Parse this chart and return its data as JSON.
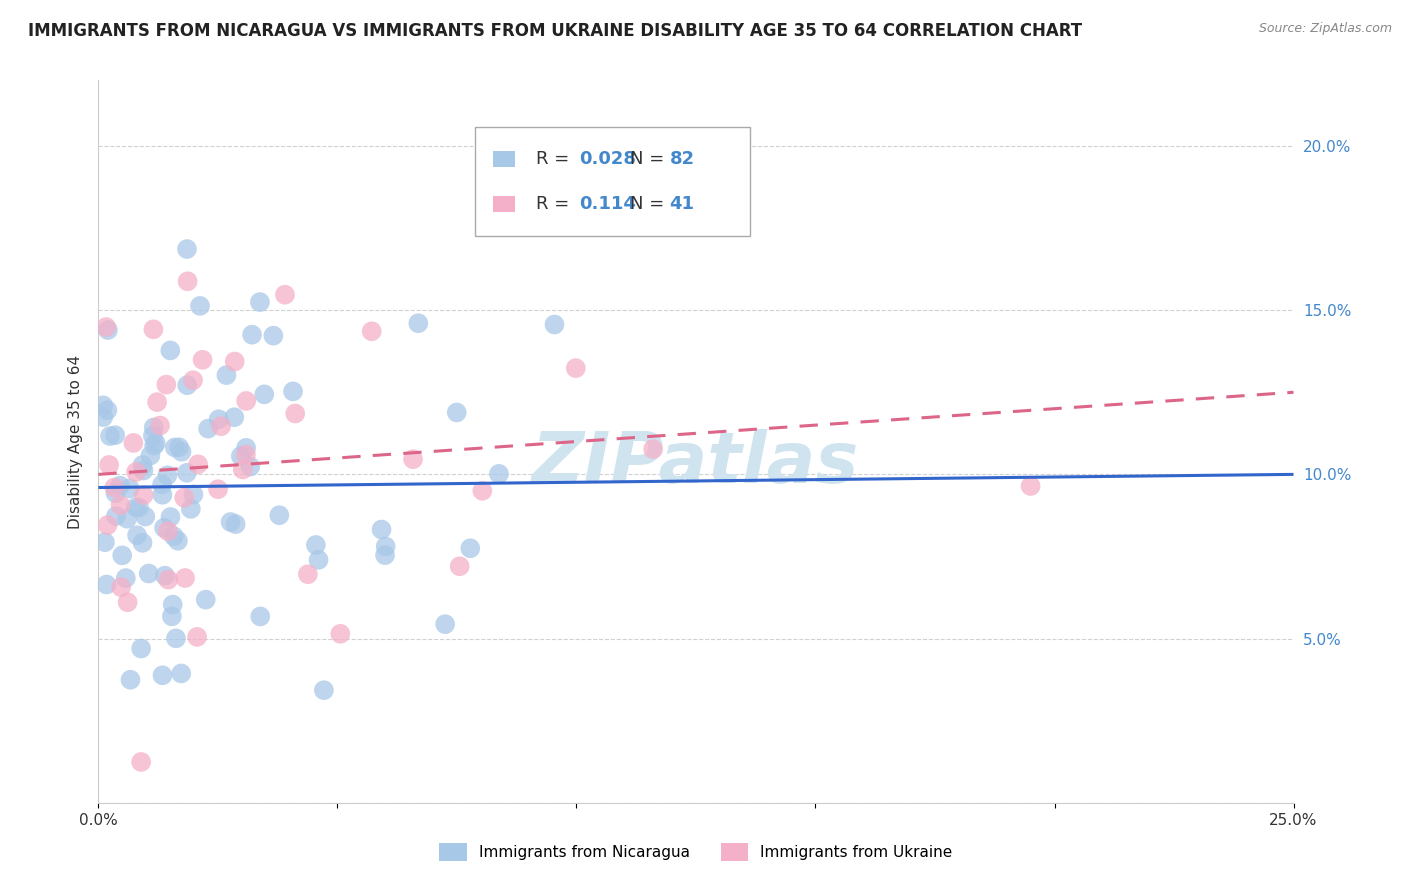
{
  "title": "IMMIGRANTS FROM NICARAGUA VS IMMIGRANTS FROM UKRAINE DISABILITY AGE 35 TO 64 CORRELATION CHART",
  "source": "Source: ZipAtlas.com",
  "ylabel": "Disability Age 35 to 64",
  "xlim": [
    0.0,
    0.25
  ],
  "ylim": [
    0.0,
    0.22
  ],
  "xtick_positions": [
    0.0,
    0.05,
    0.1,
    0.15,
    0.2,
    0.25
  ],
  "xticklabels": [
    "0.0%",
    "",
    "",
    "",
    "",
    "25.0%"
  ],
  "ytick_positions": [
    0.0,
    0.05,
    0.1,
    0.15,
    0.2
  ],
  "yticklabels": [
    "",
    "5.0%",
    "10.0%",
    "15.0%",
    "20.0%"
  ],
  "nicaragua_color": "#a8c8e8",
  "ukraine_color": "#f4b0c8",
  "nicaragua_line_color": "#3366cc",
  "ukraine_line_color": "#dd6688",
  "R_nicaragua": 0.028,
  "N_nicaragua": 82,
  "R_ukraine": 0.114,
  "N_ukraine": 41,
  "nic_line_start_y": 0.096,
  "nic_line_end_y": 0.1,
  "ukr_line_start_y": 0.1,
  "ukr_line_end_y": 0.125,
  "background_color": "#ffffff",
  "grid_color": "#cccccc",
  "title_fontsize": 12,
  "axis_label_fontsize": 11,
  "tick_fontsize": 11,
  "legend_fontsize": 13,
  "watermark_text": "ZIPatlas",
  "watermark_color": "#d0e4f0",
  "tick_color": "#4488cc",
  "source_color": "#888888"
}
